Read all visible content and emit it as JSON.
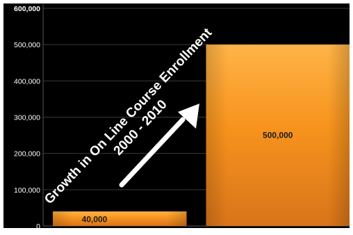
{
  "chart_data": {
    "type": "bar",
    "title_lines": [
      "Growth in On Line Course Enrollment",
      "2000 - 2010"
    ],
    "categories": [
      "2000",
      "2010"
    ],
    "category_labels_visible": false,
    "values": [
      40000,
      500000
    ],
    "data_labels": [
      "40,000",
      "500,000"
    ],
    "ylim": [
      0,
      600000
    ],
    "yticks": [
      "0",
      "100,000",
      "200,000",
      "300,000",
      "400,000",
      "500,000",
      "600,000"
    ],
    "grid": true,
    "legend": "none",
    "annotation": "upward-arrow",
    "colors": {
      "background": "#000000",
      "frame": "#ffffff",
      "bar_light": "#ffb347",
      "bar_mid": "#f7941d",
      "bar_dark": "#d9741a",
      "axis_text": "#ffffff",
      "data_label": "#1a1a1a",
      "gridline": "#3a3a3a"
    }
  }
}
